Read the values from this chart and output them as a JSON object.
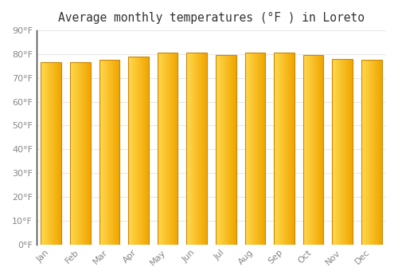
{
  "title": "Average monthly temperatures (°F ) in Loreto",
  "months": [
    "Jan",
    "Feb",
    "Mar",
    "Apr",
    "May",
    "Jun",
    "Jul",
    "Aug",
    "Sep",
    "Oct",
    "Nov",
    "Dec"
  ],
  "values": [
    76.5,
    76.5,
    77.5,
    79.0,
    80.5,
    80.5,
    79.5,
    80.5,
    80.5,
    79.5,
    78.0,
    77.5
  ],
  "bar_color_left": "#FFDD88",
  "bar_color_right": "#F5A800",
  "bar_edge_color": "#C8880A",
  "background_color": "#FFFFFF",
  "plot_bg_color": "#FFFFFF",
  "ylim": [
    0,
    90
  ],
  "yticks": [
    0,
    10,
    20,
    30,
    40,
    50,
    60,
    70,
    80,
    90
  ],
  "ytick_labels": [
    "0°F",
    "10°F",
    "20°F",
    "30°F",
    "40°F",
    "50°F",
    "60°F",
    "70°F",
    "80°F",
    "90°F"
  ],
  "grid_color": "#E8E8E8",
  "tick_label_color": "#888888",
  "title_color": "#333333",
  "title_fontsize": 10.5,
  "tick_fontsize": 8
}
